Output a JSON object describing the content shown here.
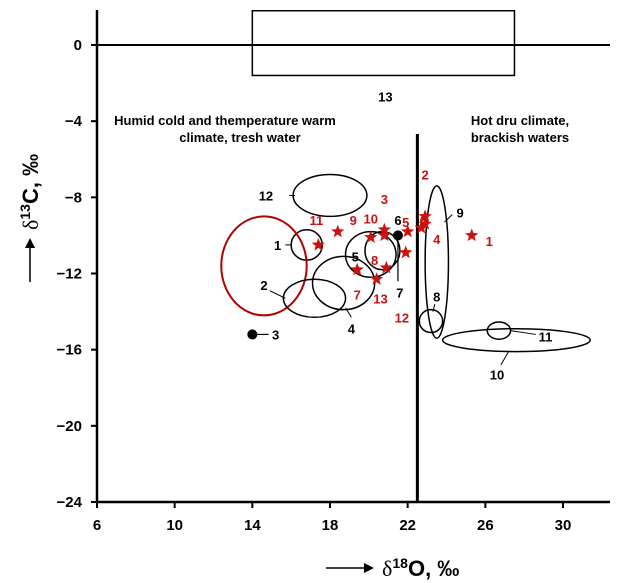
{
  "chart_data": {
    "type": "scatter",
    "xlabel": "δ18O, ‰",
    "ylabel": "δ13C, ‰",
    "xlim": [
      6,
      33
    ],
    "ylim": [
      -24,
      2
    ],
    "x_ticks": [
      6,
      10,
      14,
      18,
      22,
      26,
      30
    ],
    "y_ticks": [
      0,
      -4,
      -8,
      -12,
      -16,
      -20,
      -24
    ],
    "annotations": [
      {
        "id": "humid",
        "lines": [
          "Humid cold and themperature warm",
          "climate, tresh water"
        ]
      },
      {
        "id": "hot",
        "lines": [
          "Hot dru climate,",
          "brackish waters"
        ]
      }
    ],
    "vertical_line_x": 22.5,
    "zero_line_y": 0,
    "field_13": {
      "label": "13",
      "x": [
        14,
        27.5
      ],
      "y": [
        -1.6,
        1.8
      ]
    },
    "ellipses": [
      {
        "label": "1",
        "cx": 16.8,
        "cy": -10.5,
        "rx": 0.8,
        "ry": 0.8,
        "color": "#000000",
        "label_x": 15.3,
        "label_y": -10.5
      },
      {
        "label": "2",
        "cx": 14.6,
        "cy": -11.6,
        "rx": 2.2,
        "ry": 2.6,
        "color": "#b00000",
        "label_x": 14.6,
        "label_y": -12.6
      },
      {
        "label": "",
        "cx": 17.2,
        "cy": -13.3,
        "rx": 1.6,
        "ry": 1.0,
        "color": "#000000",
        "label_x": 0,
        "label_y": 0
      },
      {
        "label": "4",
        "cx": 18.7,
        "cy": -12.5,
        "rx": 1.6,
        "ry": 1.4,
        "color": "#000000",
        "label_x": 19.1,
        "label_y": -14.9
      },
      {
        "label": "5",
        "cx": 20.1,
        "cy": -11.0,
        "rx": 1.3,
        "ry": 1.2,
        "color": "#000000",
        "label_x": 19.3,
        "label_y": -11.1
      },
      {
        "label": "",
        "cx": 20.7,
        "cy": -10.8,
        "rx": 0.9,
        "ry": 1.0,
        "color": "#000000",
        "label_x": 0,
        "label_y": 0
      },
      {
        "label": "12",
        "cx": 18.0,
        "cy": -7.9,
        "rx": 1.9,
        "ry": 1.1,
        "color": "#000000",
        "label_x": 14.7,
        "label_y": -7.9
      },
      {
        "label": "9",
        "cx": 23.5,
        "cy": -11.4,
        "rx": 0.6,
        "ry": 4.0,
        "color": "#000000",
        "label_x": 24.7,
        "label_y": -8.8
      },
      {
        "label": "8",
        "cx": 23.2,
        "cy": -14.5,
        "rx": 0.6,
        "ry": 0.6,
        "color": "#000000",
        "label_x": 23.5,
        "label_y": -13.2
      },
      {
        "label": "10",
        "cx": 27.6,
        "cy": -15.5,
        "rx": 3.8,
        "ry": 0.6,
        "color": "#000000",
        "label_x": 26.6,
        "label_y": -17.3
      },
      {
        "label": "11",
        "cx": 26.7,
        "cy": -15.0,
        "rx": 0.6,
        "ry": 0.45,
        "color": "#000000",
        "label_x": 29.1,
        "label_y": -15.3
      }
    ],
    "black_points": [
      {
        "label": "3",
        "x": 14.0,
        "y": -15.2,
        "label_x": 15.2,
        "label_y": -15.2
      },
      {
        "label": "6",
        "x": 21.5,
        "y": -10.0,
        "label_x": 21.5,
        "label_y": -9.2
      },
      {
        "label": "7",
        "x": 21.5,
        "y": -10.0,
        "label_x": 21.6,
        "label_y": -13.0
      }
    ],
    "red_stars": [
      {
        "label": "1",
        "x": 25.3,
        "y": -10.0,
        "label_x": 26.2,
        "label_y": -10.3
      },
      {
        "label": "2",
        "x": 22.9,
        "y": -9.0,
        "label_x": 22.9,
        "label_y": -6.8
      },
      {
        "label": "3",
        "x": 20.8,
        "y": -9.7,
        "label_x": 20.8,
        "label_y": -8.1
      },
      {
        "label": "4",
        "x": 22.7,
        "y": -9.6,
        "label_x": 23.5,
        "label_y": -10.2
      },
      {
        "label": "5",
        "x": 22.0,
        "y": -9.8,
        "label_x": 21.9,
        "label_y": -9.3
      },
      {
        "label": "6",
        "x": 22.9,
        "y": -9.4,
        "label_x": 22.8,
        "label_y": -9.2
      },
      {
        "label": "7",
        "x": 19.4,
        "y": -11.8,
        "label_x": 19.4,
        "label_y": -13.1
      },
      {
        "label": "8",
        "x": 20.9,
        "y": -11.7,
        "label_x": 20.3,
        "label_y": -11.3
      },
      {
        "label": "9",
        "x": 18.4,
        "y": -9.8,
        "label_x": 19.2,
        "label_y": -9.2
      },
      {
        "label": "10",
        "x": 20.1,
        "y": -10.1,
        "label_x": 20.1,
        "label_y": -9.1
      },
      {
        "label": "11",
        "x": 17.4,
        "y": -10.5,
        "label_x": 17.3,
        "label_y": -9.2
      },
      {
        "label": "12",
        "x": 21.9,
        "y": -10.9,
        "label_x": 21.7,
        "label_y": -14.3
      },
      {
        "label": "13",
        "x": 20.4,
        "y": -12.3,
        "label_x": 20.6,
        "label_y": -13.3
      },
      {
        "label": "",
        "x": 20.8,
        "y": -10.0,
        "label_x": 0,
        "label_y": 0
      }
    ]
  }
}
